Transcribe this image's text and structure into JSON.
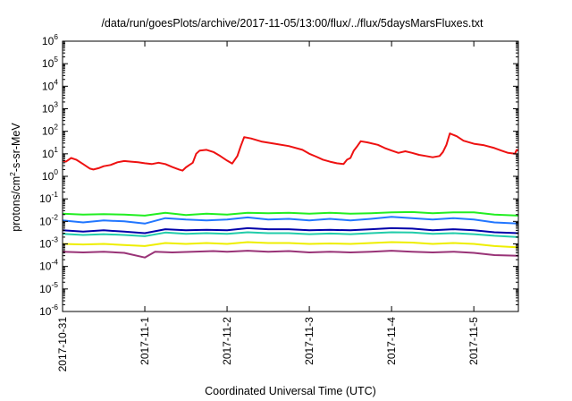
{
  "chart_data": {
    "type": "line",
    "title": "/data/run/goesPlots/archive/2017-11-05/13:00/flux/../flux/5daysMarsFluxes.txt",
    "xlabel": "Coordinated Universal Time (UTC)",
    "ylabel_parts": [
      "protons/cm",
      "2",
      "-s-sr-MeV"
    ],
    "y_scale": "log",
    "ylim": [
      1e-06,
      1000000.0
    ],
    "xlim": [
      "2017-10-31T00:00",
      "2017-11-05T13:00"
    ],
    "y_ticks": [
      {
        "base": "10",
        "exp": "-6",
        "value": 1e-06
      },
      {
        "base": "10",
        "exp": "-5",
        "value": 1e-05
      },
      {
        "base": "10",
        "exp": "-4",
        "value": 0.0001
      },
      {
        "base": "10",
        "exp": "-3",
        "value": 0.001
      },
      {
        "base": "10",
        "exp": "-2",
        "value": 0.01
      },
      {
        "base": "10",
        "exp": "-1",
        "value": 0.1
      },
      {
        "base": "10",
        "exp": "0",
        "value": 1
      },
      {
        "base": "10",
        "exp": "1",
        "value": 10
      },
      {
        "base": "10",
        "exp": "2",
        "value": 100
      },
      {
        "base": "10",
        "exp": "3",
        "value": 1000
      },
      {
        "base": "10",
        "exp": "4",
        "value": 10000
      },
      {
        "base": "10",
        "exp": "5",
        "value": 100000
      },
      {
        "base": "10",
        "exp": "6",
        "value": 1000000
      }
    ],
    "x_ticks": [
      {
        "label": "2017-10-31",
        "t": "2017-10-31T00:00"
      },
      {
        "label": "2017-11-1",
        "t": "2017-11-01T00:00"
      },
      {
        "label": "2017-11-2",
        "t": "2017-11-02T00:00"
      },
      {
        "label": "2017-11-3",
        "t": "2017-11-03T00:00"
      },
      {
        "label": "2017-11-4",
        "t": "2017-11-04T00:00"
      },
      {
        "label": "2017-11-5",
        "t": "2017-11-05T00:00"
      }
    ],
    "series": [
      {
        "color": "#ee1111",
        "points": [
          [
            "2017-10-31T00:00",
            5
          ],
          [
            "2017-10-31T01:00",
            4.5
          ],
          [
            "2017-10-31T02:30",
            6.5
          ],
          [
            "2017-10-31T04:00",
            5.5
          ],
          [
            "2017-10-31T06:00",
            3.5
          ],
          [
            "2017-10-31T08:00",
            2.2
          ],
          [
            "2017-10-31T09:00",
            2
          ],
          [
            "2017-10-31T10:30",
            2.3
          ],
          [
            "2017-10-31T12:00",
            2.8
          ],
          [
            "2017-10-31T14:00",
            3.2
          ],
          [
            "2017-10-31T16:00",
            4.2
          ],
          [
            "2017-10-31T18:00",
            4.8
          ],
          [
            "2017-10-31T20:00",
            4.5
          ],
          [
            "2017-10-31T22:00",
            4.2
          ],
          [
            "2017-11-01T00:00",
            3.8
          ],
          [
            "2017-11-01T02:00",
            3.5
          ],
          [
            "2017-11-01T04:00",
            4
          ],
          [
            "2017-11-01T06:00",
            3.5
          ],
          [
            "2017-11-01T08:00",
            2.6
          ],
          [
            "2017-11-01T10:00",
            2
          ],
          [
            "2017-11-01T11:00",
            1.8
          ],
          [
            "2017-11-01T12:00",
            2.5
          ],
          [
            "2017-11-01T13:00",
            3.2
          ],
          [
            "2017-11-01T14:00",
            4
          ],
          [
            "2017-11-01T15:00",
            10
          ],
          [
            "2017-11-01T16:00",
            14
          ],
          [
            "2017-11-01T18:00",
            15
          ],
          [
            "2017-11-01T20:00",
            12
          ],
          [
            "2017-11-01T22:00",
            8
          ],
          [
            "2017-11-02T00:00",
            5
          ],
          [
            "2017-11-02T01:30",
            3.7
          ],
          [
            "2017-11-02T03:00",
            8
          ],
          [
            "2017-11-02T04:00",
            22
          ],
          [
            "2017-11-02T05:00",
            55
          ],
          [
            "2017-11-02T07:00",
            48
          ],
          [
            "2017-11-02T10:00",
            35
          ],
          [
            "2017-11-02T14:00",
            28
          ],
          [
            "2017-11-02T18:00",
            22
          ],
          [
            "2017-11-02T22:00",
            15
          ],
          [
            "2017-11-03T00:00",
            10
          ],
          [
            "2017-11-03T02:00",
            7.5
          ],
          [
            "2017-11-03T04:00",
            5.5
          ],
          [
            "2017-11-03T06:00",
            4.5
          ],
          [
            "2017-11-03T08:00",
            3.8
          ],
          [
            "2017-11-03T10:00",
            3.5
          ],
          [
            "2017-11-03T11:00",
            5.5
          ],
          [
            "2017-11-03T12:00",
            6.5
          ],
          [
            "2017-11-03T13:00",
            14
          ],
          [
            "2017-11-03T14:00",
            22
          ],
          [
            "2017-11-03T15:00",
            36
          ],
          [
            "2017-11-03T17:00",
            32
          ],
          [
            "2017-11-03T20:00",
            25
          ],
          [
            "2017-11-03T22:00",
            18
          ],
          [
            "2017-11-04T00:00",
            14
          ],
          [
            "2017-11-04T02:00",
            11
          ],
          [
            "2017-11-04T04:00",
            13
          ],
          [
            "2017-11-04T06:00",
            11
          ],
          [
            "2017-11-04T08:00",
            9
          ],
          [
            "2017-11-04T10:00",
            8
          ],
          [
            "2017-11-04T12:00",
            7
          ],
          [
            "2017-11-04T14:00",
            8
          ],
          [
            "2017-11-04T15:00",
            12
          ],
          [
            "2017-11-04T16:00",
            25
          ],
          [
            "2017-11-04T17:00",
            80
          ],
          [
            "2017-11-04T19:00",
            60
          ],
          [
            "2017-11-04T21:00",
            38
          ],
          [
            "2017-11-05T00:00",
            28
          ],
          [
            "2017-11-05T03:00",
            24
          ],
          [
            "2017-11-05T06:00",
            18
          ],
          [
            "2017-11-05T08:00",
            14
          ],
          [
            "2017-11-05T10:00",
            11
          ],
          [
            "2017-11-05T12:00",
            10
          ],
          [
            "2017-11-05T12:30",
            15
          ],
          [
            "2017-11-05T13:00",
            14
          ]
        ]
      },
      {
        "color": "#22ee22",
        "points": [
          [
            "2017-10-31T00:00",
            0.022
          ],
          [
            "2017-10-31T06:00",
            0.02
          ],
          [
            "2017-10-31T12:00",
            0.021
          ],
          [
            "2017-10-31T18:00",
            0.02
          ],
          [
            "2017-11-01T00:00",
            0.018
          ],
          [
            "2017-11-01T06:00",
            0.024
          ],
          [
            "2017-11-01T12:00",
            0.019
          ],
          [
            "2017-11-01T18:00",
            0.022
          ],
          [
            "2017-11-02T00:00",
            0.02
          ],
          [
            "2017-11-02T06:00",
            0.024
          ],
          [
            "2017-11-02T12:00",
            0.023
          ],
          [
            "2017-11-02T18:00",
            0.024
          ],
          [
            "2017-11-03T00:00",
            0.022
          ],
          [
            "2017-11-03T06:00",
            0.024
          ],
          [
            "2017-11-03T12:00",
            0.022
          ],
          [
            "2017-11-03T18:00",
            0.023
          ],
          [
            "2017-11-04T00:00",
            0.025
          ],
          [
            "2017-11-04T06:00",
            0.026
          ],
          [
            "2017-11-04T12:00",
            0.023
          ],
          [
            "2017-11-04T18:00",
            0.025
          ],
          [
            "2017-11-05T00:00",
            0.025
          ],
          [
            "2017-11-05T06:00",
            0.02
          ],
          [
            "2017-11-05T13:00",
            0.018
          ]
        ]
      },
      {
        "color": "#2277ff",
        "points": [
          [
            "2017-10-31T00:00",
            0.011
          ],
          [
            "2017-10-31T06:00",
            0.009
          ],
          [
            "2017-10-31T12:00",
            0.011
          ],
          [
            "2017-10-31T18:00",
            0.01
          ],
          [
            "2017-11-01T00:00",
            0.008
          ],
          [
            "2017-11-01T06:00",
            0.014
          ],
          [
            "2017-11-01T12:00",
            0.012
          ],
          [
            "2017-11-01T18:00",
            0.011
          ],
          [
            "2017-11-02T00:00",
            0.012
          ],
          [
            "2017-11-02T06:00",
            0.015
          ],
          [
            "2017-11-02T12:00",
            0.012
          ],
          [
            "2017-11-02T18:00",
            0.013
          ],
          [
            "2017-11-03T00:00",
            0.011
          ],
          [
            "2017-11-03T06:00",
            0.013
          ],
          [
            "2017-11-03T12:00",
            0.011
          ],
          [
            "2017-11-03T18:00",
            0.013
          ],
          [
            "2017-11-04T00:00",
            0.016
          ],
          [
            "2017-11-04T06:00",
            0.014
          ],
          [
            "2017-11-04T12:00",
            0.012
          ],
          [
            "2017-11-04T18:00",
            0.014
          ],
          [
            "2017-11-05T00:00",
            0.012
          ],
          [
            "2017-11-05T06:00",
            0.009
          ],
          [
            "2017-11-05T13:00",
            0.008
          ]
        ]
      },
      {
        "color": "#0000aa",
        "points": [
          [
            "2017-10-31T00:00",
            0.004
          ],
          [
            "2017-10-31T06:00",
            0.0035
          ],
          [
            "2017-10-31T12:00",
            0.004
          ],
          [
            "2017-10-31T18:00",
            0.0035
          ],
          [
            "2017-11-01T00:00",
            0.003
          ],
          [
            "2017-11-01T06:00",
            0.0045
          ],
          [
            "2017-11-01T12:00",
            0.004
          ],
          [
            "2017-11-01T18:00",
            0.0042
          ],
          [
            "2017-11-02T00:00",
            0.004
          ],
          [
            "2017-11-02T06:00",
            0.005
          ],
          [
            "2017-11-02T12:00",
            0.0045
          ],
          [
            "2017-11-02T18:00",
            0.0045
          ],
          [
            "2017-11-03T00:00",
            0.004
          ],
          [
            "2017-11-03T06:00",
            0.0042
          ],
          [
            "2017-11-03T12:00",
            0.004
          ],
          [
            "2017-11-03T18:00",
            0.0045
          ],
          [
            "2017-11-04T00:00",
            0.005
          ],
          [
            "2017-11-04T06:00",
            0.0048
          ],
          [
            "2017-11-04T12:00",
            0.004
          ],
          [
            "2017-11-04T18:00",
            0.0045
          ],
          [
            "2017-11-05T00:00",
            0.004
          ],
          [
            "2017-11-05T06:00",
            0.0033
          ],
          [
            "2017-11-05T13:00",
            0.003
          ]
        ]
      },
      {
        "color": "#22ccaa",
        "points": [
          [
            "2017-10-31T00:00",
            0.0028
          ],
          [
            "2017-10-31T06:00",
            0.0025
          ],
          [
            "2017-10-31T12:00",
            0.0027
          ],
          [
            "2017-10-31T18:00",
            0.0025
          ],
          [
            "2017-11-01T00:00",
            0.0022
          ],
          [
            "2017-11-01T06:00",
            0.0032
          ],
          [
            "2017-11-01T12:00",
            0.0028
          ],
          [
            "2017-11-01T18:00",
            0.003
          ],
          [
            "2017-11-02T00:00",
            0.0028
          ],
          [
            "2017-11-02T06:00",
            0.0033
          ],
          [
            "2017-11-02T12:00",
            0.003
          ],
          [
            "2017-11-02T18:00",
            0.003
          ],
          [
            "2017-11-03T00:00",
            0.0027
          ],
          [
            "2017-11-03T06:00",
            0.0029
          ],
          [
            "2017-11-03T12:00",
            0.0027
          ],
          [
            "2017-11-03T18:00",
            0.003
          ],
          [
            "2017-11-04T00:00",
            0.0033
          ],
          [
            "2017-11-04T06:00",
            0.0032
          ],
          [
            "2017-11-04T12:00",
            0.0028
          ],
          [
            "2017-11-04T18:00",
            0.003
          ],
          [
            "2017-11-05T00:00",
            0.0027
          ],
          [
            "2017-11-05T06:00",
            0.0023
          ],
          [
            "2017-11-05T13:00",
            0.002
          ]
        ]
      },
      {
        "color": "#eeee00",
        "points": [
          [
            "2017-10-31T00:00",
            0.001
          ],
          [
            "2017-10-31T06:00",
            0.00095
          ],
          [
            "2017-10-31T12:00",
            0.001
          ],
          [
            "2017-10-31T18:00",
            0.0009
          ],
          [
            "2017-11-01T00:00",
            0.0008
          ],
          [
            "2017-11-01T06:00",
            0.0011
          ],
          [
            "2017-11-01T12:00",
            0.001
          ],
          [
            "2017-11-01T18:00",
            0.0011
          ],
          [
            "2017-11-02T00:00",
            0.001
          ],
          [
            "2017-11-02T06:00",
            0.0012
          ],
          [
            "2017-11-02T12:00",
            0.0011
          ],
          [
            "2017-11-02T18:00",
            0.0011
          ],
          [
            "2017-11-03T00:00",
            0.001
          ],
          [
            "2017-11-03T06:00",
            0.00105
          ],
          [
            "2017-11-03T12:00",
            0.001
          ],
          [
            "2017-11-03T18:00",
            0.0011
          ],
          [
            "2017-11-04T00:00",
            0.0012
          ],
          [
            "2017-11-04T06:00",
            0.00115
          ],
          [
            "2017-11-04T12:00",
            0.001
          ],
          [
            "2017-11-04T18:00",
            0.0011
          ],
          [
            "2017-11-05T00:00",
            0.001
          ],
          [
            "2017-11-05T06:00",
            0.0008
          ],
          [
            "2017-11-05T13:00",
            0.0007
          ]
        ]
      },
      {
        "color": "#993377",
        "points": [
          [
            "2017-10-31T00:00",
            0.00045
          ],
          [
            "2017-10-31T06:00",
            0.00042
          ],
          [
            "2017-10-31T12:00",
            0.00045
          ],
          [
            "2017-10-31T18:00",
            0.0004
          ],
          [
            "2017-11-01T00:00",
            0.00025
          ],
          [
            "2017-11-01T03:00",
            0.00045
          ],
          [
            "2017-11-01T08:00",
            0.00042
          ],
          [
            "2017-11-01T14:00",
            0.00045
          ],
          [
            "2017-11-01T20:00",
            0.00048
          ],
          [
            "2017-11-02T00:00",
            0.00045
          ],
          [
            "2017-11-02T06:00",
            0.0005
          ],
          [
            "2017-11-02T12:00",
            0.00045
          ],
          [
            "2017-11-02T18:00",
            0.00048
          ],
          [
            "2017-11-03T00:00",
            0.00042
          ],
          [
            "2017-11-03T06:00",
            0.00045
          ],
          [
            "2017-11-03T12:00",
            0.00042
          ],
          [
            "2017-11-03T18:00",
            0.00045
          ],
          [
            "2017-11-04T00:00",
            0.0005
          ],
          [
            "2017-11-04T06:00",
            0.00045
          ],
          [
            "2017-11-04T12:00",
            0.00042
          ],
          [
            "2017-11-04T18:00",
            0.00045
          ],
          [
            "2017-11-05T00:00",
            0.0004
          ],
          [
            "2017-11-05T06:00",
            0.00032
          ],
          [
            "2017-11-05T13:00",
            0.0003
          ]
        ]
      }
    ]
  }
}
